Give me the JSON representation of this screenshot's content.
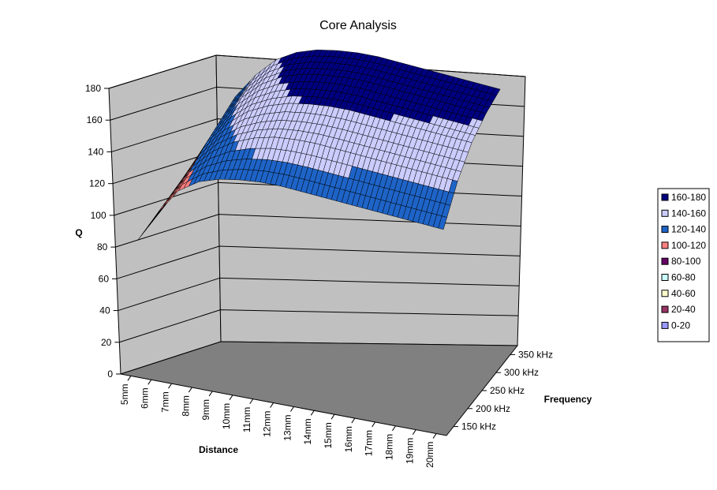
{
  "chart_data": {
    "type": "surface",
    "title": "Core Analysis",
    "zlabel": "Q",
    "xlabel": "Distance",
    "ylabel": "Frequency",
    "zlim": [
      0,
      180
    ],
    "z_ticks": [
      "0",
      "20",
      "40",
      "60",
      "80",
      "100",
      "120",
      "140",
      "160",
      "180"
    ],
    "distance_labels": [
      "5mm",
      "6mm",
      "7mm",
      "8mm",
      "9mm",
      "10mm",
      "11mm",
      "12mm",
      "13mm",
      "14mm",
      "15mm",
      "16mm",
      "17mm",
      "18mm",
      "19mm",
      "20mm"
    ],
    "frequency_labels": [
      "150 kHz",
      "200 kHz",
      "250 kHz",
      "300 kHz",
      "350 kHz"
    ],
    "distance_mm": [
      5,
      6,
      7,
      8,
      9,
      10,
      11,
      12,
      13,
      14,
      15,
      16,
      17,
      18,
      19,
      20
    ],
    "frequency_khz": [
      150,
      200,
      250,
      300,
      350
    ],
    "q_values_approx": [
      [
        80,
        80,
        80,
        80,
        80
      ],
      [
        100,
        101,
        102,
        103,
        104
      ],
      [
        116,
        120,
        124,
        127,
        130
      ],
      [
        124,
        132,
        138,
        143,
        146
      ],
      [
        128,
        140,
        148,
        154,
        158
      ],
      [
        130,
        145,
        154,
        161,
        165
      ],
      [
        131,
        148,
        158,
        165,
        169
      ],
      [
        131,
        149,
        160,
        167,
        171
      ],
      [
        130,
        149,
        161,
        168,
        172
      ],
      [
        129,
        148,
        161,
        168,
        172
      ],
      [
        128,
        147,
        160,
        167,
        171
      ],
      [
        127,
        146,
        159,
        166,
        170
      ],
      [
        126,
        145,
        158,
        165,
        169
      ],
      [
        125,
        144,
        157,
        164,
        168
      ],
      [
        124,
        143,
        156,
        163,
        167
      ],
      [
        123,
        142,
        155,
        162,
        166
      ]
    ],
    "legend": {
      "placement": "right",
      "entries": [
        {
          "label": "160-180",
          "color": "#000080"
        },
        {
          "label": "140-160",
          "color": "#ccccff"
        },
        {
          "label": "120-140",
          "color": "#1e64c8"
        },
        {
          "label": "100-120",
          "color": "#ff8080"
        },
        {
          "label": "80-100",
          "color": "#660066"
        },
        {
          "label": "60-80",
          "color": "#ccffff"
        },
        {
          "label": "40-60",
          "color": "#ffffcc"
        },
        {
          "label": "20-40",
          "color": "#993366"
        },
        {
          "label": "0-20",
          "color": "#9999ff"
        }
      ]
    },
    "walls_color": "#c0c0c0",
    "floor_color": "#808080",
    "grid": true
  }
}
